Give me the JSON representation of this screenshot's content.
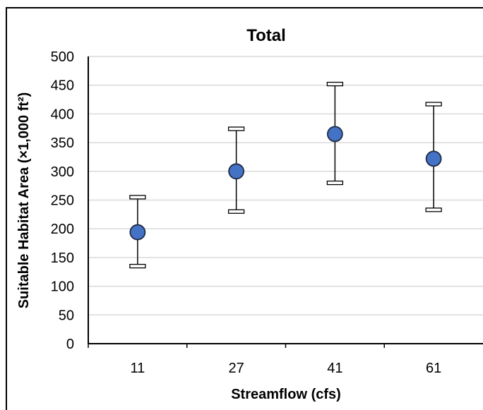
{
  "chart_data": {
    "type": "scatter",
    "title": "Total",
    "xlabel": "Streamflow (cfs)",
    "ylabel": "Suitable Habitat Area (×1,000 ft²)",
    "categories": [
      "11",
      "27",
      "41",
      "61"
    ],
    "ylim": [
      0,
      500
    ],
    "yticks": [
      0,
      50,
      100,
      150,
      200,
      250,
      300,
      350,
      400,
      450,
      500
    ],
    "grid": true,
    "legend": "none",
    "series": [
      {
        "values": [
          194,
          300,
          365,
          322
        ],
        "error_low": [
          135,
          230,
          280,
          233
        ],
        "error_high": [
          255,
          374,
          452,
          417
        ]
      }
    ],
    "colors": {
      "marker": "#4472C4",
      "marker_edge": "#1F2A44",
      "grid": "#D9D9D9",
      "axis": "#000000"
    }
  }
}
